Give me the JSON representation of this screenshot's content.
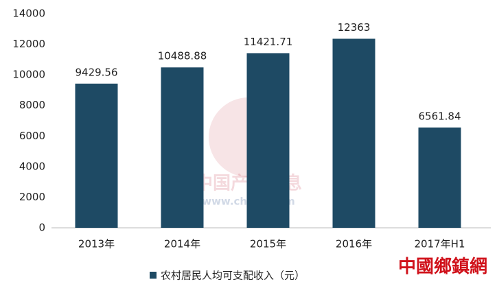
{
  "chart_data": {
    "type": "bar",
    "categories": [
      "2013年",
      "2014年",
      "2015年",
      "2016年",
      "2017年H1"
    ],
    "series": [
      {
        "name": "农村居民人均可支配收入（元）",
        "color": "#1e4a64",
        "values": [
          9429.56,
          10488.88,
          11421.71,
          12363,
          6561.84
        ]
      }
    ],
    "ylim": [
      0,
      14000
    ],
    "yticks": [
      0,
      2000,
      4000,
      6000,
      8000,
      10000,
      12000,
      14000
    ],
    "grid": false,
    "legend": "bottom",
    "watermark": {
      "title": "中国产业信息",
      "url": "www.chyxx.com"
    },
    "source_mark": "中國鄉鎮網"
  }
}
